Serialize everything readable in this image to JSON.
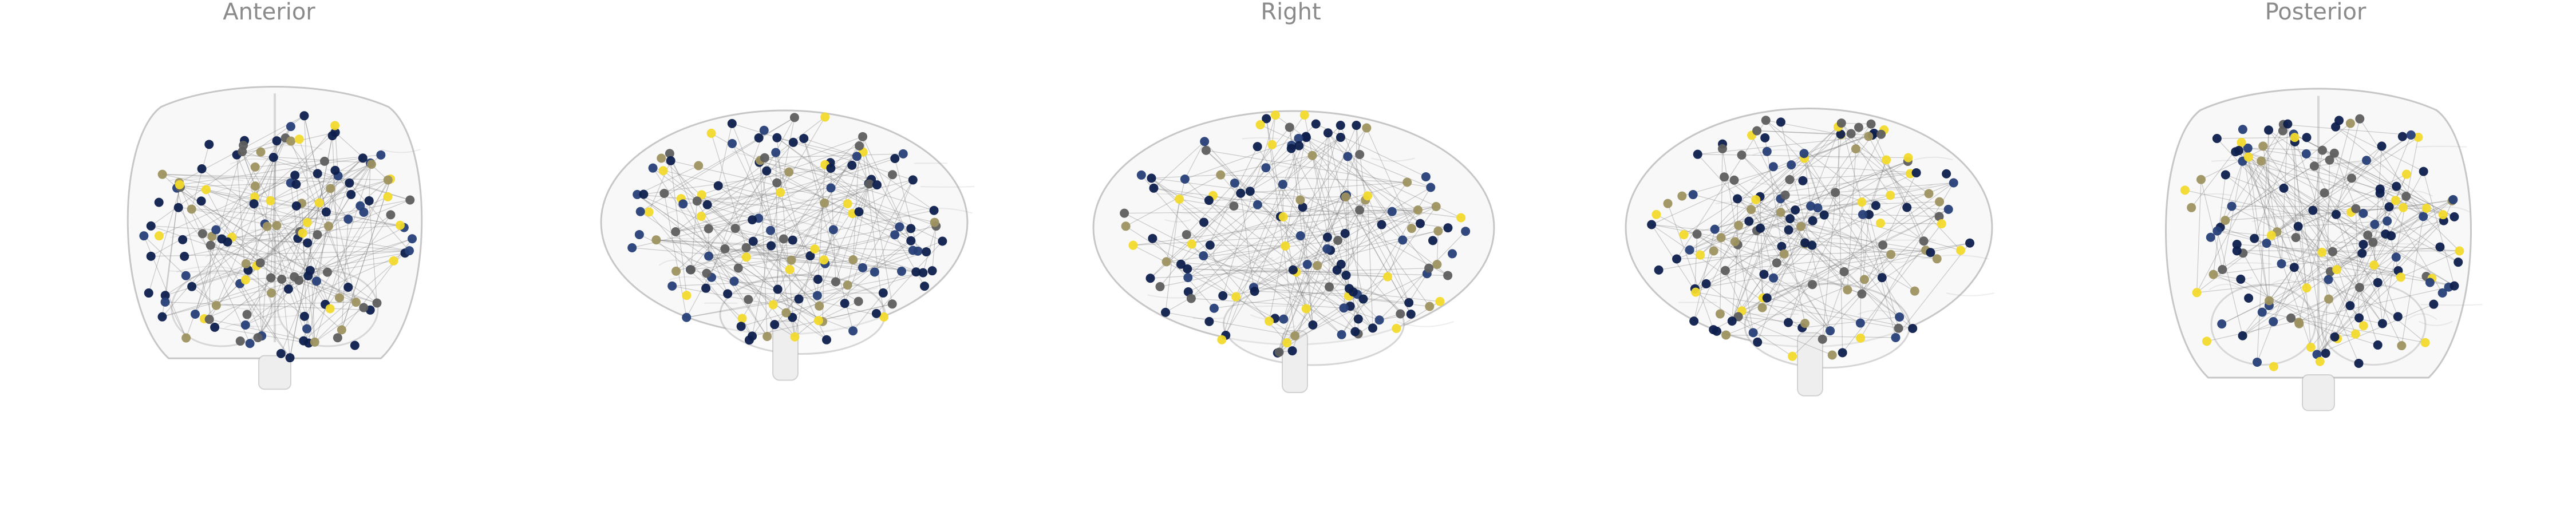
{
  "views": [
    {
      "name": "anterior",
      "label": "Anterior"
    },
    {
      "name": "front-right-oblique",
      "label": ""
    },
    {
      "name": "right",
      "label": "Right"
    },
    {
      "name": "back-right-oblique",
      "label": ""
    },
    {
      "name": "posterior",
      "label": "Posterior"
    }
  ],
  "colors": {
    "background": "#ffffff",
    "brain_outline": "#9a9a9a",
    "edges": "#777777",
    "node_yellow": "#f2da2c",
    "node_olive": "#9e9260",
    "node_gray": "#5e5e5e",
    "node_navy": "#0e1f4d",
    "node_blue": "#263f77",
    "label_text": "#8a8a8a"
  },
  "network": {
    "node_count_per_view": 140,
    "color_map": "cividis"
  }
}
